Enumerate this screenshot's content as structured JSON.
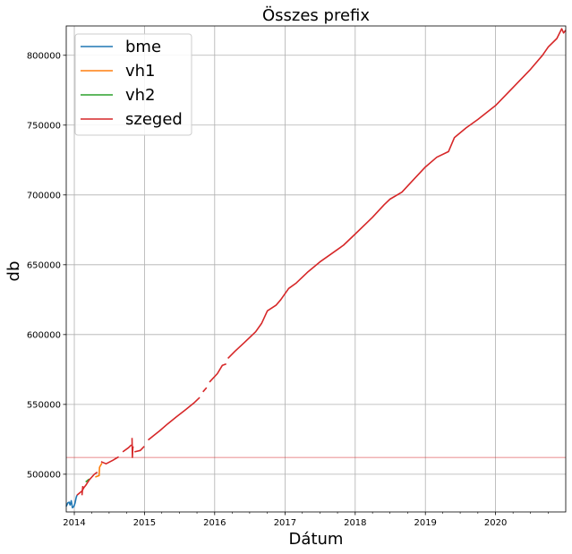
{
  "chart_data": {
    "type": "line",
    "title": "Összes prefix",
    "xlabel": "Dátum",
    "ylabel": "db",
    "xlim": [
      "2013-11-20",
      "2020-12-31"
    ],
    "ylim": [
      473000,
      821000
    ],
    "x_ticks": [
      "2014",
      "2015",
      "2016",
      "2017",
      "2018",
      "2019",
      "2020"
    ],
    "y_ticks": [
      500000,
      550000,
      600000,
      650000,
      700000,
      750000,
      800000
    ],
    "y_tick_labels": [
      "500000",
      "550000",
      "600000",
      "650000",
      "700000",
      "750000",
      "800000"
    ],
    "grid": true,
    "legend_position": "top-left",
    "hline": {
      "y": 512000,
      "color": "#d62728"
    },
    "series": [
      {
        "name": "bme",
        "color": "#1f77b4",
        "points": [
          [
            "2013-11-20",
            477000
          ],
          [
            "2013-11-28",
            479500
          ],
          [
            "2013-12-05",
            480000
          ],
          [
            "2013-12-10",
            478000
          ],
          [
            "2013-12-16",
            481000
          ],
          [
            "2013-12-22",
            476000
          ],
          [
            "2013-12-30",
            477000
          ],
          [
            "2014-01-05",
            479500
          ],
          [
            "2014-01-10",
            483000
          ],
          [
            "2014-01-15",
            485000
          ]
        ]
      },
      {
        "name": "vh1",
        "color": "#ff7f0e",
        "points": [
          [
            "2014-04-20",
            498000
          ],
          [
            "2014-05-10",
            499000
          ],
          [
            "2014-05-12",
            505000
          ],
          [
            "2014-05-25",
            508000
          ]
        ]
      },
      {
        "name": "vh2",
        "color": "#2ca02c",
        "points": [
          [
            "2014-03-01",
            494500
          ],
          [
            "2014-03-20",
            496500
          ]
        ]
      },
      {
        "name": "szeged",
        "color": "#d62728",
        "segments": [
          [
            [
              "2014-01-15",
              485000
            ],
            [
              "2014-02-10",
              488000
            ],
            [
              "2014-02-20",
              490500
            ],
            [
              "2014-03-01",
              492000
            ],
            [
              "2014-03-20",
              496000
            ],
            [
              "2014-04-15",
              500000
            ],
            [
              "2014-05-01",
              501500
            ]
          ],
          [
            [
              "2014-02-10",
              485000
            ],
            [
              "2014-02-14",
              491500
            ]
          ],
          [
            [
              "2014-05-20",
              509000
            ],
            [
              "2014-06-15",
              507500
            ],
            [
              "2014-07-20",
              510000
            ],
            [
              "2014-08-20",
              512500
            ]
          ],
          [
            [
              "2014-09-10",
              516000
            ],
            [
              "2014-10-10",
              519000
            ],
            [
              "2014-10-25",
              521000
            ]
          ],
          [
            [
              "2014-10-28",
              526000
            ],
            [
              "2014-10-30",
              512000
            ],
            [
              "2014-11-01",
              518000
            ],
            [
              "2014-11-03",
              520000
            ]
          ],
          [
            [
              "2014-11-10",
              516000
            ],
            [
              "2014-12-10",
              517000
            ],
            [
              "2014-12-31",
              520000
            ]
          ],
          [
            [
              "2015-01-20",
              524500
            ],
            [
              "2015-02-20",
              528000
            ],
            [
              "2015-03-20",
              531000
            ],
            [
              "2015-05-01",
              536000
            ],
            [
              "2015-06-15",
              541000
            ],
            [
              "2015-08-01",
              546000
            ],
            [
              "2015-09-15",
              551000
            ],
            [
              "2015-10-15",
              555000
            ]
          ],
          [
            [
              "2015-11-01",
              559000
            ],
            [
              "2015-11-20",
              562000
            ]
          ],
          [
            [
              "2015-12-05",
              566000
            ],
            [
              "2016-01-15",
              572000
            ],
            [
              "2016-02-10",
              578000
            ],
            [
              "2016-03-01",
              579000
            ]
          ],
          [
            [
              "2016-03-10",
              583000
            ],
            [
              "2016-04-15",
              588000
            ],
            [
              "2016-06-01",
              594000
            ],
            [
              "2016-08-01",
              602000
            ],
            [
              "2016-09-01",
              608000
            ],
            [
              "2016-10-01",
              617000
            ],
            [
              "2016-11-15",
              621000
            ],
            [
              "2016-12-10",
              625000
            ],
            [
              "2017-01-20",
              633000
            ],
            [
              "2017-03-01",
              637000
            ],
            [
              "2017-05-01",
              645000
            ],
            [
              "2017-07-01",
              652000
            ],
            [
              "2017-09-01",
              658000
            ],
            [
              "2017-11-01",
              664000
            ],
            [
              "2018-01-01",
              672000
            ],
            [
              "2018-04-01",
              684000
            ],
            [
              "2018-06-01",
              693000
            ],
            [
              "2018-07-01",
              697000
            ],
            [
              "2018-09-01",
              702000
            ],
            [
              "2018-11-01",
              711000
            ],
            [
              "2019-01-01",
              720000
            ],
            [
              "2019-03-01",
              727000
            ],
            [
              "2019-05-01",
              731000
            ],
            [
              "2019-06-01",
              741000
            ],
            [
              "2019-08-01",
              748000
            ],
            [
              "2019-10-01",
              754000
            ],
            [
              "2020-01-01",
              764000
            ],
            [
              "2020-04-01",
              777000
            ],
            [
              "2020-07-01",
              790000
            ],
            [
              "2020-09-01",
              800000
            ],
            [
              "2020-10-01",
              806000
            ],
            [
              "2020-11-15",
              812000
            ],
            [
              "2020-12-10",
              819000
            ],
            [
              "2020-12-20",
              816000
            ],
            [
              "2020-12-31",
              818000
            ]
          ]
        ]
      }
    ]
  }
}
